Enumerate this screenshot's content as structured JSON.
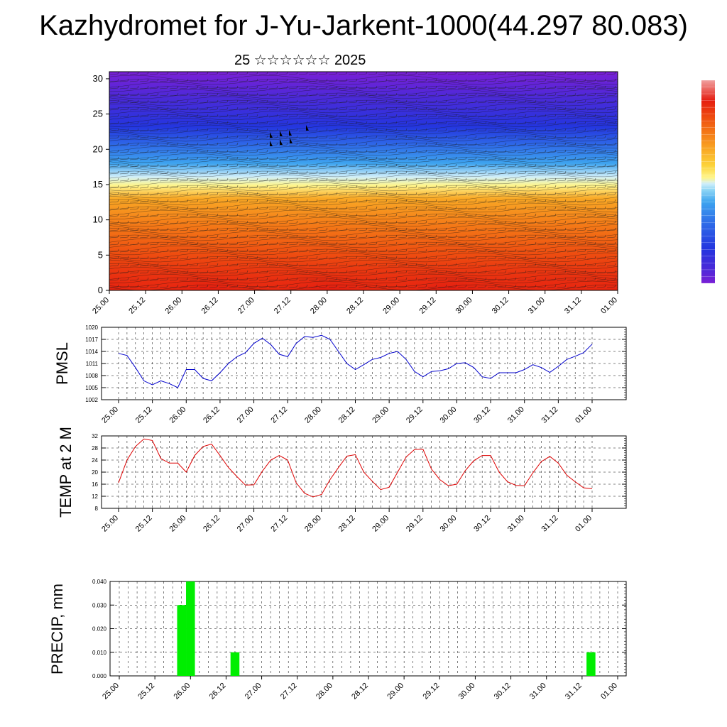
{
  "title": "Kazhydromet for J-Yu-Jarkent-1000(44.297 80.083)",
  "subtitle": "25 ☆☆☆☆☆☆ 2025",
  "time_labels": [
    "25.00",
    "25.12",
    "26.00",
    "26.12",
    "27.00",
    "27.12",
    "28.00",
    "28.12",
    "29.00",
    "29.12",
    "30.00",
    "30.12",
    "31.00",
    "31.12",
    "01.00"
  ],
  "colors": {
    "pmsl": "#0000cc",
    "temp": "#dd0000",
    "precip": "#00ee00"
  },
  "chart_data": [
    {
      "type": "heatmap",
      "name": "vertical cross-section",
      "y_ticks": [
        0,
        5,
        10,
        15,
        20,
        25,
        30
      ],
      "ylim": [
        0,
        31
      ],
      "x": [
        "25.00",
        "25.12",
        "26.00",
        "26.12",
        "27.00",
        "27.12",
        "28.00",
        "28.12",
        "29.00",
        "29.12",
        "30.00",
        "30.12",
        "31.00",
        "31.12",
        "01.00"
      ],
      "colorbar": [
        "#7a1fd6",
        "#4b2ad8",
        "#2435df",
        "#2f6de8",
        "#3ea4ef",
        "#8fd6f5",
        "#cfeefa",
        "#fff58c",
        "#fcd33a",
        "#f9a825",
        "#f47a17",
        "#ee4b10",
        "#e51d10",
        "#d60b0b"
      ],
      "grid": false
    },
    {
      "type": "line",
      "ylabel": "PMSL",
      "y_ticks": [
        1002,
        1005,
        1008,
        1011,
        1014,
        1017,
        1020
      ],
      "ylim": [
        1002,
        1020
      ],
      "grid": true,
      "series": [
        {
          "values": [
            1013.5,
            1013,
            1010,
            1006.7,
            1005.7,
            1006.7,
            1006,
            1005,
            1009.5,
            1009.5,
            1007.3,
            1006.7,
            1008.7,
            1011,
            1012.7,
            1013.7,
            1016,
            1017.3,
            1015.7,
            1013.3,
            1012.7,
            1016,
            1017.7,
            1017.5,
            1018,
            1017,
            1014,
            1011,
            1009.5,
            1010.7,
            1012,
            1012.5,
            1013.5,
            1014,
            1012,
            1009,
            1007.7,
            1009,
            1009.2,
            1009.7,
            1011,
            1011.2,
            1010,
            1007.7,
            1007.3,
            1008.7,
            1008.7,
            1008.7,
            1009.5,
            1010.7,
            1010,
            1008.8,
            1010.3,
            1012,
            1012.8,
            1013.7,
            1015.8
          ]
        }
      ]
    },
    {
      "type": "line",
      "ylabel": "TEMP at 2 M",
      "y_ticks": [
        8,
        12,
        16,
        20,
        24,
        28,
        32
      ],
      "ylim": [
        8,
        32
      ],
      "grid": true,
      "series": [
        {
          "values": [
            16.5,
            24,
            28.5,
            31,
            30.5,
            24.5,
            23,
            23,
            20,
            25.5,
            28.5,
            29.3,
            25.5,
            21.5,
            18.5,
            15.7,
            15.8,
            20.3,
            24,
            25.5,
            24,
            16.5,
            13,
            11.8,
            12.6,
            17.5,
            21.5,
            25.3,
            25.8,
            20,
            17,
            14.2,
            15,
            20,
            25,
            27.5,
            27.6,
            21,
            17.5,
            15.5,
            16,
            20.5,
            23.8,
            25.5,
            25.5,
            20,
            16.8,
            15.6,
            15.5,
            19.8,
            23.5,
            25.2,
            23,
            19,
            16.8,
            14.8,
            14.5
          ]
        }
      ]
    },
    {
      "type": "bar",
      "ylabel": "PRECIP, mm",
      "y_ticks": [
        "0.000",
        "0.010",
        "0.020",
        "0.030",
        "0.040"
      ],
      "ylim": [
        0,
        0.04
      ],
      "grid": true,
      "bars": [
        {
          "x_hours": 21,
          "value": 0.03
        },
        {
          "x_hours": 24,
          "value": 0.04
        },
        {
          "x_hours": 39,
          "value": 0.01
        },
        {
          "x_hours": 159,
          "value": 0.01
        }
      ]
    }
  ]
}
